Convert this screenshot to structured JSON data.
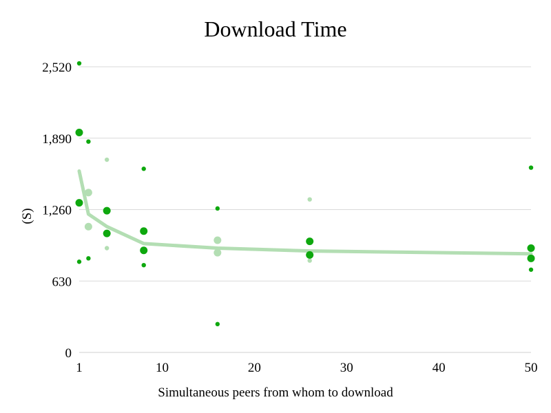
{
  "chart_data": {
    "type": "scatter",
    "title": "Download Time",
    "xlabel": "Simultaneous peers from whom to download",
    "ylabel": "(S)",
    "xlim": [
      1,
      50
    ],
    "ylim": [
      0,
      2520
    ],
    "x_ticks": [
      1,
      10,
      20,
      30,
      40,
      50
    ],
    "x_tick_labels": [
      "1",
      "10",
      "20",
      "30",
      "40",
      "50"
    ],
    "y_ticks": [
      0,
      630,
      1260,
      1890,
      2520
    ],
    "y_tick_labels": [
      "0",
      "630",
      "1,260",
      "1,890",
      "2,520"
    ],
    "grid": "horizontal",
    "legend": "none",
    "colors": {
      "dark": "#0ea80e",
      "light": "#b3deb3",
      "trend": "#b3deb3",
      "grid": "#d9d9d9"
    },
    "series": [
      {
        "color": "dark",
        "points": [
          {
            "x": 1,
            "y": 2550,
            "size": "small"
          },
          {
            "x": 1,
            "y": 1940,
            "size": "large"
          },
          {
            "x": 1,
            "y": 1320,
            "size": "large"
          },
          {
            "x": 1,
            "y": 800,
            "size": "small"
          },
          {
            "x": 2,
            "y": 1860,
            "size": "small"
          },
          {
            "x": 2,
            "y": 830,
            "size": "small"
          },
          {
            "x": 4,
            "y": 1250,
            "size": "large"
          },
          {
            "x": 4,
            "y": 1050,
            "size": "large"
          },
          {
            "x": 8,
            "y": 1620,
            "size": "small"
          },
          {
            "x": 8,
            "y": 1070,
            "size": "large"
          },
          {
            "x": 8,
            "y": 900,
            "size": "large"
          },
          {
            "x": 8,
            "y": 770,
            "size": "small"
          },
          {
            "x": 16,
            "y": 1270,
            "size": "small"
          },
          {
            "x": 16,
            "y": 250,
            "size": "small"
          },
          {
            "x": 26,
            "y": 980,
            "size": "large"
          },
          {
            "x": 26,
            "y": 860,
            "size": "large"
          },
          {
            "x": 50,
            "y": 1630,
            "size": "small"
          },
          {
            "x": 50,
            "y": 920,
            "size": "large"
          },
          {
            "x": 50,
            "y": 830,
            "size": "large"
          },
          {
            "x": 50,
            "y": 730,
            "size": "small"
          }
        ]
      },
      {
        "color": "light",
        "points": [
          {
            "x": 2,
            "y": 1410,
            "size": "large"
          },
          {
            "x": 2,
            "y": 1110,
            "size": "large"
          },
          {
            "x": 4,
            "y": 1700,
            "size": "small"
          },
          {
            "x": 4,
            "y": 920,
            "size": "small"
          },
          {
            "x": 16,
            "y": 990,
            "size": "large"
          },
          {
            "x": 16,
            "y": 880,
            "size": "large"
          },
          {
            "x": 26,
            "y": 1350,
            "size": "small"
          },
          {
            "x": 26,
            "y": 810,
            "size": "small"
          }
        ]
      }
    ],
    "trend_line": {
      "x": [
        1,
        2,
        4,
        8,
        16,
        26,
        50
      ],
      "y": [
        1600,
        1220,
        1110,
        960,
        920,
        895,
        870
      ]
    }
  }
}
